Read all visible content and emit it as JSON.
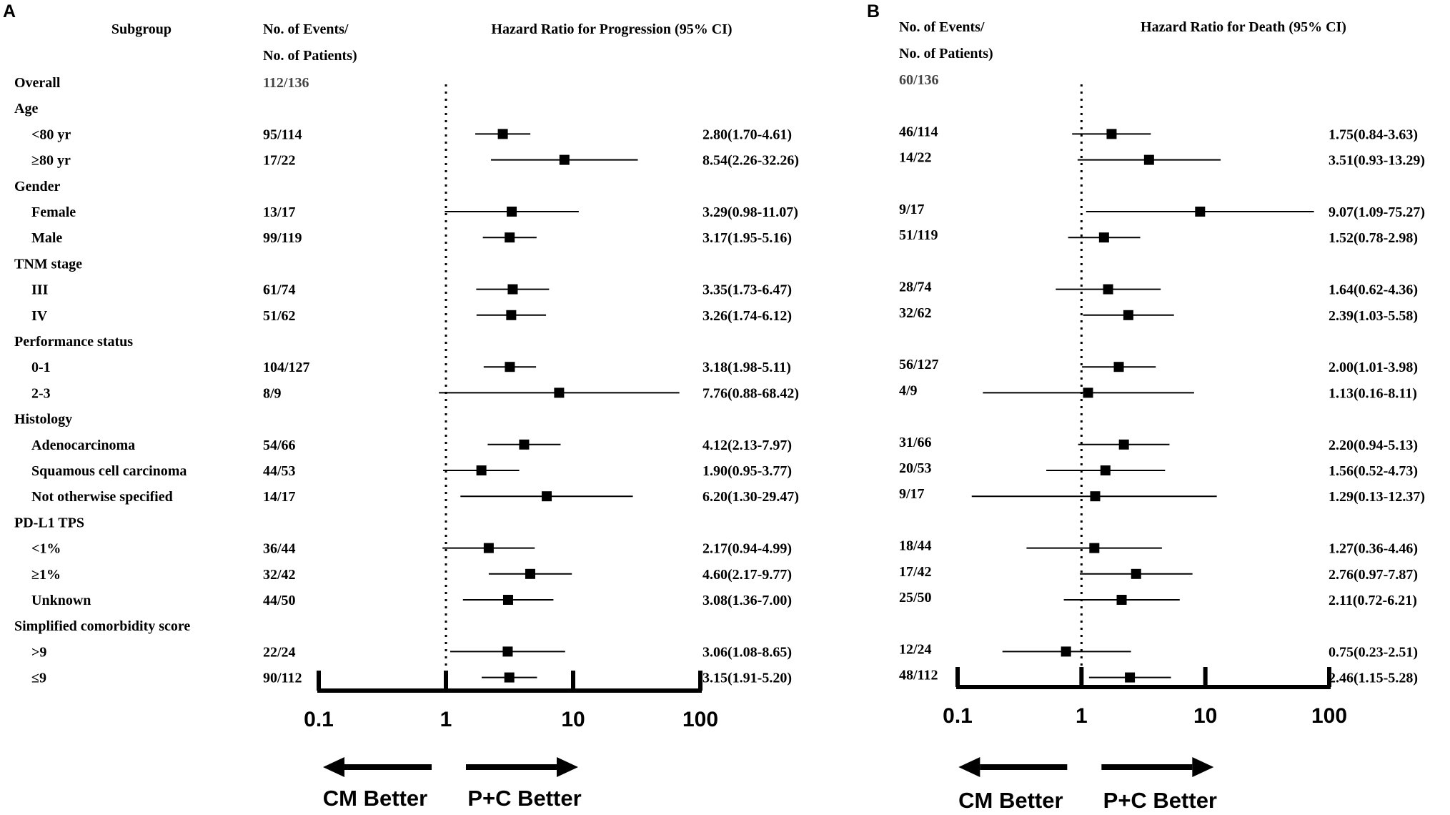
{
  "chart_data": [
    {
      "type": "forest",
      "panel_label": "A",
      "title": "Hazard Ratio for Progression (95% CI)",
      "subgroup_header": "Subgroup",
      "events_header": [
        "No. of Events/",
        "No. of Patients)"
      ],
      "x_scale": "log",
      "xlim": [
        0.1,
        100
      ],
      "ticks": [
        0.1,
        1,
        10,
        100
      ],
      "tick_labels": [
        "0.1",
        "1",
        "10",
        "100"
      ],
      "reference_line": 1,
      "arrow_left_label": "CM Better",
      "arrow_right_label": "P+C Better",
      "rows": [
        {
          "label": "Overall",
          "level": 0,
          "events": "112/136"
        },
        {
          "label": "Age",
          "level": 0
        },
        {
          "label": "<80 yr",
          "level": 1,
          "events": "95/114",
          "hr": 2.8,
          "lo": 1.7,
          "hi": 4.61,
          "ci_text": "2.80(1.70-4.61)"
        },
        {
          "label": "≥80 yr",
          "level": 1,
          "events": "17/22",
          "hr": 8.54,
          "lo": 2.26,
          "hi": 32.26,
          "ci_text": "8.54(2.26-32.26)"
        },
        {
          "label": "Gender",
          "level": 0
        },
        {
          "label": "Female",
          "level": 1,
          "events": "13/17",
          "hr": 3.29,
          "lo": 0.98,
          "hi": 11.07,
          "ci_text": "3.29(0.98-11.07)"
        },
        {
          "label": "Male",
          "level": 1,
          "events": "99/119",
          "hr": 3.17,
          "lo": 1.95,
          "hi": 5.16,
          "ci_text": "3.17(1.95-5.16)"
        },
        {
          "label": "TNM stage",
          "level": 0
        },
        {
          "label": "III",
          "level": 1,
          "events": "61/74",
          "hr": 3.35,
          "lo": 1.73,
          "hi": 6.47,
          "ci_text": "3.35(1.73-6.47)"
        },
        {
          "label": "IV",
          "level": 1,
          "events": "51/62",
          "hr": 3.26,
          "lo": 1.74,
          "hi": 6.12,
          "ci_text": "3.26(1.74-6.12)"
        },
        {
          "label": "Performance status",
          "level": 0
        },
        {
          "label": "0-1",
          "level": 1,
          "events": "104/127",
          "hr": 3.18,
          "lo": 1.98,
          "hi": 5.11,
          "ci_text": "3.18(1.98-5.11)"
        },
        {
          "label": "2-3",
          "level": 1,
          "events": "8/9",
          "hr": 7.76,
          "lo": 0.88,
          "hi": 68.42,
          "ci_text": "7.76(0.88-68.42)"
        },
        {
          "label": "Histology",
          "level": 0
        },
        {
          "label": "Adenocarcinoma",
          "level": 1,
          "events": "54/66",
          "hr": 4.12,
          "lo": 2.13,
          "hi": 7.97,
          "ci_text": "4.12(2.13-7.97)"
        },
        {
          "label": "Squamous cell carcinoma",
          "level": 1,
          "events": "44/53",
          "hr": 1.9,
          "lo": 0.95,
          "hi": 3.77,
          "ci_text": "1.90(0.95-3.77)"
        },
        {
          "label": "Not otherwise specified",
          "level": 1,
          "events": "14/17",
          "hr": 6.2,
          "lo": 1.3,
          "hi": 29.47,
          "ci_text": "6.20(1.30-29.47)"
        },
        {
          "label": "PD-L1 TPS",
          "level": 0
        },
        {
          "label": "<1%",
          "level": 1,
          "events": "36/44",
          "hr": 2.17,
          "lo": 0.94,
          "hi": 4.99,
          "ci_text": "2.17(0.94-4.99)"
        },
        {
          "label": "≥1%",
          "level": 1,
          "events": "32/42",
          "hr": 4.6,
          "lo": 2.17,
          "hi": 9.77,
          "ci_text": "4.60(2.17-9.77)"
        },
        {
          "label": "Unknown",
          "level": 1,
          "events": "44/50",
          "hr": 3.08,
          "lo": 1.36,
          "hi": 7.0,
          "ci_text": "3.08(1.36-7.00)"
        },
        {
          "label": "Simplified comorbidity score",
          "level": 0
        },
        {
          "label": ">9",
          "level": 1,
          "events": "22/24",
          "hr": 3.06,
          "lo": 1.08,
          "hi": 8.65,
          "ci_text": "3.06(1.08-8.65)"
        },
        {
          "label": "≤9",
          "level": 1,
          "events": "90/112",
          "hr": 3.15,
          "lo": 1.91,
          "hi": 5.2,
          "ci_text": "3.15(1.91-5.20)"
        }
      ]
    },
    {
      "type": "forest",
      "panel_label": "B",
      "title": "Hazard Ratio for Death (95% CI)",
      "events_header": [
        "No. of Events/",
        "No. of Patients)"
      ],
      "x_scale": "log",
      "xlim": [
        0.1,
        100
      ],
      "ticks": [
        0.1,
        1,
        10,
        100
      ],
      "tick_labels": [
        "0.1",
        "1",
        "10",
        "100"
      ],
      "reference_line": 1,
      "arrow_left_label": "CM Better",
      "arrow_right_label": "P+C Better",
      "rows": [
        {
          "label": "Overall",
          "events": "60/136"
        },
        {
          "label": "Age"
        },
        {
          "label": "<80 yr",
          "events": "46/114",
          "hr": 1.75,
          "lo": 0.84,
          "hi": 3.63,
          "ci_text": "1.75(0.84-3.63)"
        },
        {
          "label": "≥80 yr",
          "events": "14/22",
          "hr": 3.51,
          "lo": 0.93,
          "hi": 13.29,
          "ci_text": "3.51(0.93-13.29)"
        },
        {
          "label": "Gender"
        },
        {
          "label": "Female",
          "events": "9/17",
          "hr": 9.07,
          "lo": 1.09,
          "hi": 75.27,
          "ci_text": "9.07(1.09-75.27)"
        },
        {
          "label": "Male",
          "events": "51/119",
          "hr": 1.52,
          "lo": 0.78,
          "hi": 2.98,
          "ci_text": "1.52(0.78-2.98)"
        },
        {
          "label": "TNM stage"
        },
        {
          "label": "III",
          "events": "28/74",
          "hr": 1.64,
          "lo": 0.62,
          "hi": 4.36,
          "ci_text": "1.64(0.62-4.36)"
        },
        {
          "label": "IV",
          "events": "32/62",
          "hr": 2.39,
          "lo": 1.03,
          "hi": 5.58,
          "ci_text": "2.39(1.03-5.58)"
        },
        {
          "label": "Performance status"
        },
        {
          "label": "0-1",
          "events": "56/127",
          "hr": 2.0,
          "lo": 1.01,
          "hi": 3.98,
          "ci_text": "2.00(1.01-3.98)"
        },
        {
          "label": "2-3",
          "events": "4/9",
          "hr": 1.13,
          "lo": 0.16,
          "hi": 8.11,
          "ci_text": "1.13(0.16-8.11)"
        },
        {
          "label": "Histology"
        },
        {
          "label": "Adenocarcinoma",
          "events": "31/66",
          "hr": 2.2,
          "lo": 0.94,
          "hi": 5.13,
          "ci_text": "2.20(0.94-5.13)"
        },
        {
          "label": "Squamous cell carcinoma",
          "events": "20/53",
          "hr": 1.56,
          "lo": 0.52,
          "hi": 4.73,
          "ci_text": "1.56(0.52-4.73)"
        },
        {
          "label": "Not otherwise specified",
          "events": "9/17",
          "hr": 1.29,
          "lo": 0.13,
          "hi": 12.37,
          "ci_text": "1.29(0.13-12.37)"
        },
        {
          "label": "PD-L1 TPS"
        },
        {
          "label": "<1%",
          "events": "18/44",
          "hr": 1.27,
          "lo": 0.36,
          "hi": 4.46,
          "ci_text": "1.27(0.36-4.46)"
        },
        {
          "label": "≥1%",
          "events": "17/42",
          "hr": 2.76,
          "lo": 0.97,
          "hi": 7.87,
          "ci_text": "2.76(0.97-7.87)"
        },
        {
          "label": "Unknown",
          "events": "25/50",
          "hr": 2.11,
          "lo": 0.72,
          "hi": 6.21,
          "ci_text": "2.11(0.72-6.21)"
        },
        {
          "label": "Simplified comorbidity score"
        },
        {
          "label": ">9",
          "events": "12/24",
          "hr": 0.75,
          "lo": 0.23,
          "hi": 2.51,
          "ci_text": "0.75(0.23-2.51)"
        },
        {
          "label": "≤9",
          "events": "48/112",
          "hr": 2.46,
          "lo": 1.15,
          "hi": 5.28,
          "ci_text": "2.46(1.15-5.28)"
        }
      ]
    }
  ]
}
